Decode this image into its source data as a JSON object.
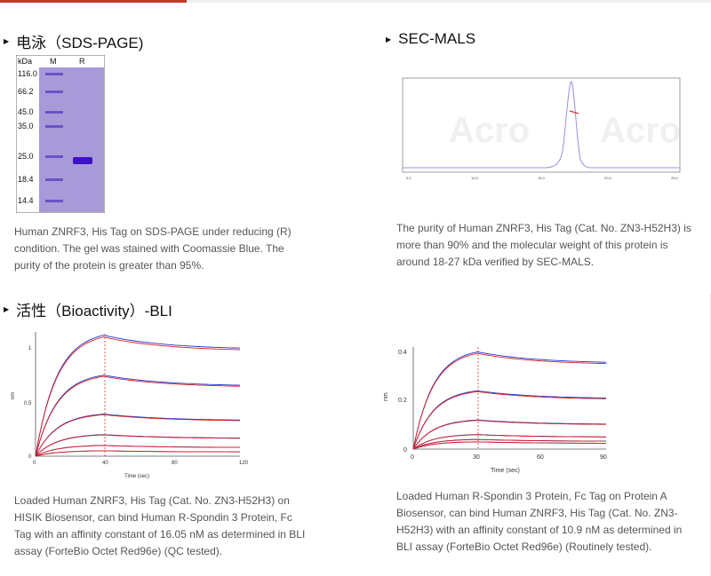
{
  "sections": {
    "sds": {
      "title": "电泳（SDS-PAGE)",
      "description": "Human ZNRF3, His Tag on SDS-PAGE under reducing (R) condition. The gel was stained with Coomassie Blue. The purity of the protein is greater than 95%.",
      "gel": {
        "unit_label": "kDa",
        "lane_m": "M",
        "lane_r": "R",
        "markers": [
          "116.0",
          "66.2",
          "45.0",
          "35.0",
          "25.0",
          "18.4",
          "14.4"
        ]
      }
    },
    "sec": {
      "title": "SEC-MALS",
      "description": "The purity of Human ZNRF3, His Tag (Cat. No. ZN3-H52H3) is more than 90% and the molecular weight of this protein is around 18-27 kDa verified by SEC-MALS."
    },
    "bli": {
      "title": "活性（Bioactivity）-BLI",
      "left_description": "Loaded Human ZNRF3, His Tag (Cat. No. ZN3-H52H3) on HISIK Biosensor, can bind Human R-Spondin 3 Protein, Fc Tag with an affinity constant of 16.05 nM as determined in BLI assay (ForteBio Octet Red96e) (QC tested).",
      "right_description": "Loaded Human R-Spondin 3 Protein, Fc Tag on Protein A Biosensor, can bind Human ZNRF3, His Tag (Cat. No. ZN3-H52H3) with an affinity constant of 10.9 nM as determined in BLI assay (ForteBio Octet Red96e) (Routinely tested)."
    }
  },
  "colors": {
    "accent": "#c0392b",
    "gel": "#a89ad8",
    "band": "#4a22c8"
  },
  "chart_data": [
    {
      "type": "line",
      "xlabel": "Time (sec)",
      "ylabel": "nm",
      "xticks": [
        "0",
        "40",
        "80",
        "120"
      ],
      "yticks": [
        "0",
        "0.5",
        "1"
      ],
      "xlim": [
        0,
        120
      ],
      "ylim": [
        0,
        1.15
      ],
      "association_end": 40,
      "series_peaks": [
        1.12,
        0.75,
        0.39,
        0.2,
        0.1,
        0.05
      ]
    },
    {
      "type": "line",
      "xlabel": "Time (sec)",
      "ylabel": "nm",
      "xticks": [
        "0",
        "30",
        "60",
        "90"
      ],
      "yticks": [
        "0",
        "0.2",
        "0.4"
      ],
      "xlim": [
        0,
        90
      ],
      "ylim": [
        0,
        0.42
      ],
      "association_end": 30,
      "series_peaks": [
        0.4,
        0.24,
        0.12,
        0.06,
        0.04,
        0.03
      ]
    }
  ]
}
